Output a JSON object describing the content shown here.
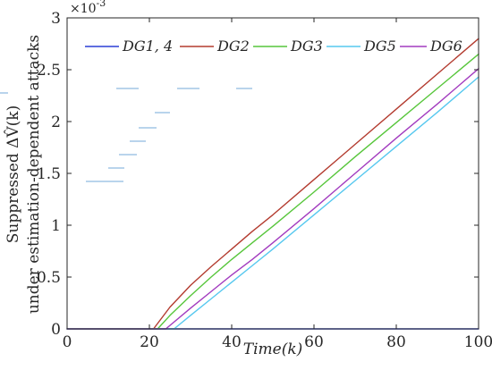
{
  "chart_data": {
    "type": "line",
    "xlabel": "Time(k)",
    "ylabel_line1": "Suppressed ΔV̂(k)",
    "ylabel_line2": "under estimation-dependent attacks",
    "y_scale_factor": "×10-3",
    "y_scale_base": "×10",
    "y_scale_exp": "-3",
    "xlim": [
      0,
      100
    ],
    "ylim": [
      0,
      0.003
    ],
    "grid": false,
    "legend_position": "top",
    "x_ticks": [
      0,
      20,
      40,
      60,
      80,
      100
    ],
    "x_tick_labels": [
      "0",
      "20",
      "40",
      "60",
      "80",
      "100"
    ],
    "y_ticks": [
      0,
      0.0005,
      0.001,
      0.0015,
      0.002,
      0.0025,
      0.003
    ],
    "y_tick_labels": [
      "0",
      "0.5",
      "1",
      "1.5",
      "2",
      "2.5",
      "3"
    ],
    "series": [
      {
        "name": "DG1, 4",
        "color": "#2b3fd6",
        "x": [
          0,
          100
        ],
        "y": [
          0,
          0
        ]
      },
      {
        "name": "DG2",
        "color": "#b33b2f",
        "x": [
          0,
          20,
          21,
          25,
          30,
          35,
          40,
          45,
          50,
          60,
          70,
          80,
          90,
          100
        ],
        "y": [
          0,
          0,
          0,
          0.00021,
          0.00042,
          0.0006,
          0.00077,
          0.00094,
          0.0011,
          0.00144,
          0.00178,
          0.00212,
          0.00246,
          0.0028
        ]
      },
      {
        "name": "DG3",
        "color": "#57c63b",
        "x": [
          0,
          20,
          22,
          25,
          30,
          35,
          40,
          45,
          50,
          60,
          70,
          80,
          90,
          100
        ],
        "y": [
          0,
          0,
          0,
          0.00013,
          0.00032,
          0.0005,
          0.00067,
          0.00083,
          0.00099,
          0.00132,
          0.00166,
          0.00199,
          0.00232,
          0.00265
        ]
      },
      {
        "name": "DG5",
        "color": "#56c8ef",
        "x": [
          0,
          20,
          26,
          30,
          35,
          40,
          45,
          50,
          60,
          70,
          80,
          90,
          100
        ],
        "y": [
          0,
          0,
          0,
          0.00013,
          0.00029,
          0.00045,
          0.00061,
          0.00077,
          0.0011,
          0.00143,
          0.00176,
          0.00209,
          0.00243
        ]
      },
      {
        "name": "DG6",
        "color": "#a23bbf",
        "x": [
          0,
          20,
          24,
          30,
          35,
          40,
          45,
          50,
          60,
          70,
          80,
          90,
          100
        ],
        "y": [
          0,
          0,
          0,
          0.0002,
          0.00036,
          0.00052,
          0.00067,
          0.00083,
          0.00116,
          0.0015,
          0.00184,
          0.00217,
          0.00251
        ]
      }
    ]
  }
}
